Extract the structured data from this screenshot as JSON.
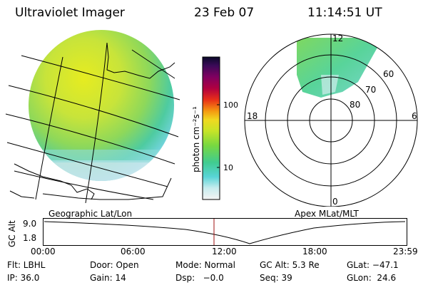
{
  "header": {
    "title": "Ultraviolet Imager",
    "date": "23 Feb 07",
    "time": "11:14:51 UT"
  },
  "colorbar": {
    "label": "photon cm⁻²s⁻¹",
    "ticks": [
      "100",
      "10"
    ]
  },
  "polar": {
    "mlt_labels": {
      "top": "12",
      "left": "18",
      "right": "6",
      "bottom": "0"
    },
    "lat_labels": [
      "60",
      "70",
      "80"
    ]
  },
  "panels": {
    "left_caption": "Geographic Lat/Lon",
    "right_caption": "Apex MLat/MLT"
  },
  "altitude_plot": {
    "ylabel": "GC Alt",
    "y_ticks": [
      "9.0",
      "1.8"
    ],
    "x_ticks": [
      "00:00",
      "06:00",
      "12:00",
      "18:00",
      "23:59"
    ],
    "current_time_marker": "11:14:51"
  },
  "info": {
    "row1": {
      "filter": "Flt: LBHL",
      "door": "Door: Open",
      "mode": "Mode: Normal",
      "gc_alt": "GC Alt: 5.3 Re",
      "glat": "GLat: −47.1"
    },
    "row2": {
      "ip": "IP: 36.0",
      "gain": "Gain: 14",
      "dsp": "Dsp:   −0.0",
      "seq": "Seq: 39",
      "glon": "GLon:  24.6"
    }
  },
  "colors": {
    "background": "#ffffff",
    "line": "#000000",
    "marker": "#a01010"
  }
}
